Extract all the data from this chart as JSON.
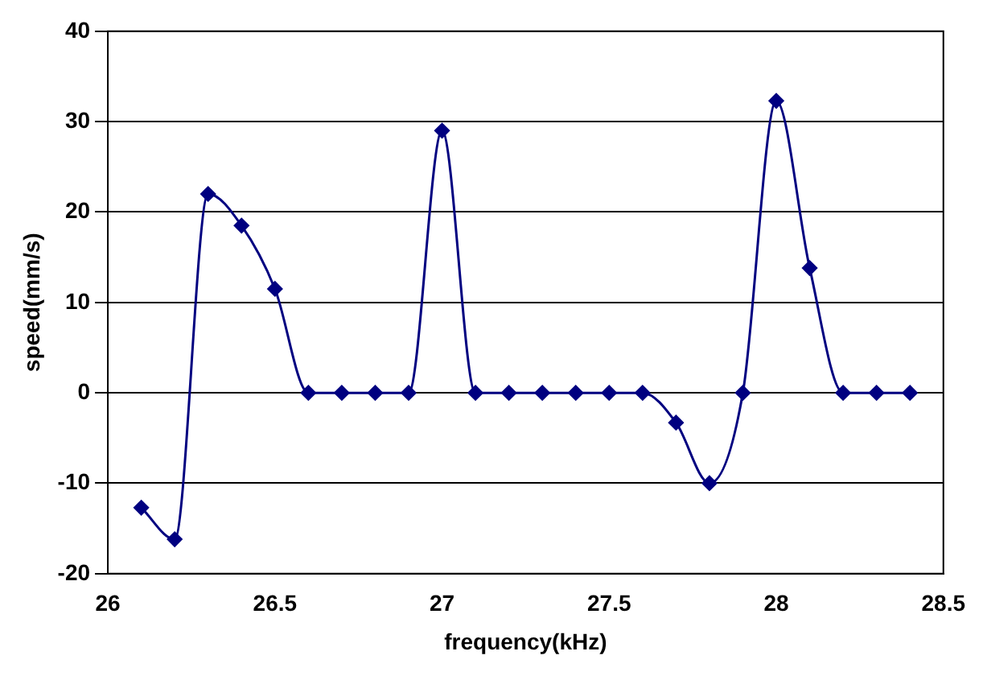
{
  "chart_data": {
    "type": "line",
    "xlabel": "frequency(kHz)",
    "ylabel": "speed(mm/s)",
    "x": [
      26.1,
      26.2,
      26.3,
      26.4,
      26.5,
      26.6,
      26.7,
      26.8,
      26.9,
      27.0,
      27.1,
      27.2,
      27.3,
      27.4,
      27.5,
      27.6,
      27.7,
      27.8,
      27.9,
      28.0,
      28.1,
      28.2,
      28.3,
      28.4
    ],
    "series": [
      {
        "color": "#000080",
        "values": [
          -12.7,
          -16.2,
          22,
          18.5,
          11.5,
          0,
          0,
          0,
          0,
          29,
          0,
          0,
          0,
          0,
          0,
          0,
          -3.3,
          -10,
          0,
          32.3,
          13.8,
          0,
          0,
          0
        ]
      }
    ],
    "xlim": [
      26,
      28.5
    ],
    "xticks": [
      26,
      26.5,
      27,
      27.5,
      28,
      28.5
    ],
    "ylim": [
      -20,
      40
    ],
    "yticks": [
      -20,
      -10,
      0,
      10,
      20,
      30,
      40
    ],
    "grid": "y",
    "legend": false,
    "marker": "diamond",
    "line_style": "solid"
  }
}
